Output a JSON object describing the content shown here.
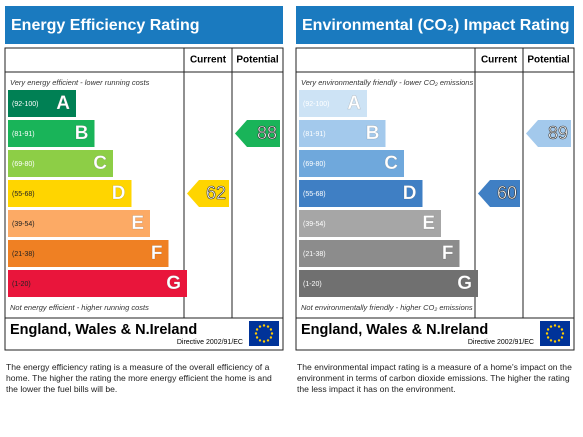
{
  "chart_data": [
    {
      "type": "epc",
      "title": "Energy Efficiency Rating",
      "header_current": "Current",
      "header_potential": "Potential",
      "top_note": "Very energy efficient - lower running costs",
      "bottom_note": "Not energy efficient - higher running costs",
      "bands": [
        {
          "range": "(92-100)",
          "letter": "A",
          "color": "#008054"
        },
        {
          "range": "(81-91)",
          "letter": "B",
          "color": "#19b459"
        },
        {
          "range": "(69-80)",
          "letter": "C",
          "color": "#8dce46"
        },
        {
          "range": "(55-68)",
          "letter": "D",
          "color": "#ffd500"
        },
        {
          "range": "(39-54)",
          "letter": "E",
          "color": "#fcaa65"
        },
        {
          "range": "(21-38)",
          "letter": "F",
          "color": "#ef8023"
        },
        {
          "range": "(1-20)",
          "letter": "G",
          "color": "#e9153b"
        }
      ],
      "current": 62,
      "potential": 88,
      "region": "England, Wales & N.Ireland",
      "directive": "Directive 2002/91/EC",
      "description": "The energy efficiency rating is a measure of the overall efficiency of a home. The higher the rating the more energy efficient the home is and the lower the fuel bills will be."
    },
    {
      "type": "epc",
      "title": "Environmental (CO₂) Impact Rating",
      "header_current": "Current",
      "header_potential": "Potential",
      "top_note": "Very environmentally friendly - lower CO₂ emissions",
      "bottom_note": "Not environmentally friendly - higher CO₂ emissions",
      "bands": [
        {
          "range": "(92-100)",
          "letter": "A",
          "color": "#cde3f5"
        },
        {
          "range": "(81-91)",
          "letter": "B",
          "color": "#a3c9ec"
        },
        {
          "range": "(69-80)",
          "letter": "C",
          "color": "#6fa8dc"
        },
        {
          "range": "(55-68)",
          "letter": "D",
          "color": "#3f7fc4"
        },
        {
          "range": "(39-54)",
          "letter": "E",
          "color": "#a6a6a6"
        },
        {
          "range": "(21-38)",
          "letter": "F",
          "color": "#8c8c8c"
        },
        {
          "range": "(1-20)",
          "letter": "G",
          "color": "#707070"
        }
      ],
      "current": 60,
      "potential": 89,
      "region": "England, Wales & N.Ireland",
      "directive": "Directive 2002/91/EC",
      "description": "The environmental impact rating is a measure of a home's impact on the environment in terms of carbon dioxide emissions. The higher the rating the less impact it has on the environment."
    }
  ]
}
